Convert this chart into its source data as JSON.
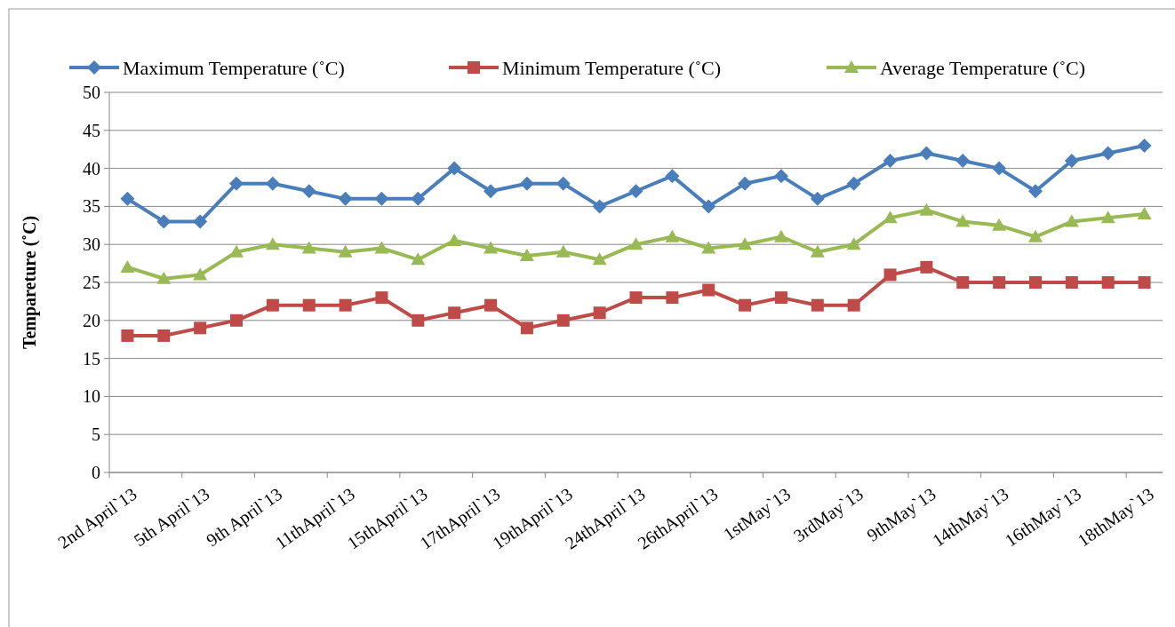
{
  "chart_data": {
    "type": "line",
    "ylabel": "Tempareture (˚C)",
    "categories": [
      "2nd April`13",
      null,
      "5th April`13",
      null,
      "9th April`13",
      null,
      "11thApril`13",
      null,
      "15thApril`13",
      null,
      "17thApril`13",
      null,
      "19thApril`13",
      null,
      "24thApril`13",
      null,
      "26thApril`13",
      null,
      "1stMay`13",
      null,
      "3rdMay`13",
      null,
      "9thMay`13",
      null,
      "14thMay`13",
      null,
      "16thMay`13",
      null,
      "18thMay`13"
    ],
    "series": [
      {
        "name": "Maximum Temperature (˚C)",
        "color": "#4a7ebb",
        "marker": "diamond",
        "values": [
          36,
          33,
          33,
          38,
          38,
          37,
          36,
          36,
          36,
          40,
          37,
          38,
          38,
          35,
          37,
          39,
          35,
          38,
          39,
          36,
          38,
          41,
          42,
          41,
          40,
          37,
          41,
          42,
          43
        ]
      },
      {
        "name": "Minimum Temperature (˚C)",
        "color": "#be4b48",
        "marker": "square",
        "values": [
          18,
          18,
          19,
          20,
          22,
          22,
          22,
          23,
          20,
          21,
          22,
          19,
          20,
          21,
          23,
          23,
          24,
          22,
          23,
          22,
          22,
          26,
          27,
          25,
          25,
          25,
          25,
          25,
          25
        ]
      },
      {
        "name": "Average Temperature (˚C)",
        "color": "#98b954",
        "marker": "triangle",
        "values": [
          27,
          25.5,
          26,
          29,
          30,
          29.5,
          29,
          29.5,
          28,
          30.5,
          29.5,
          28.5,
          29,
          28,
          30,
          31,
          29.5,
          30,
          31,
          29,
          30,
          33.5,
          34.5,
          33,
          32.5,
          31,
          33,
          33.5,
          34
        ]
      }
    ],
    "ylim": [
      0,
      50
    ],
    "yticks": [
      0,
      5,
      10,
      15,
      20,
      25,
      30,
      35,
      40,
      45,
      50
    ],
    "grid": "y",
    "legend": "top",
    "line_style": "solid"
  }
}
